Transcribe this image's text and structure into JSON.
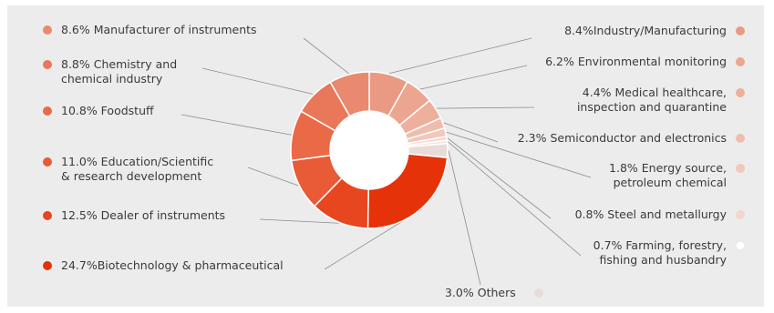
{
  "chart_data": {
    "type": "pie",
    "variant": "donut",
    "categories": [
      "Industry/Manufacturing",
      "Environmental monitoring",
      "Medical healthcare, inspection and quarantine",
      "Semiconductor and electronics",
      "Energy source, petroleum chemical",
      "Steel and metallurgy",
      "Farming, forestry, fishing and husbandry",
      "Others",
      "Biotechnology & pharmaceutical",
      "Dealer of instruments",
      "Education/Scientific & research development",
      "Foodstuff",
      "Chemistry and chemical industry",
      "Manufacturer of instruments"
    ],
    "values": [
      8.4,
      6.2,
      4.4,
      2.3,
      1.8,
      0.8,
      0.7,
      3.0,
      24.7,
      12.5,
      11.0,
      10.8,
      8.8,
      8.6
    ],
    "colors": [
      "#ea9a82",
      "#eca68f",
      "#eeb09d",
      "#efbdae",
      "#f1c8bb",
      "#f3d6cd",
      "#f6e3dd",
      "#e8dcda",
      "#e63209",
      "#e8461f",
      "#e95a36",
      "#ea6a48",
      "#e9775a",
      "#e9896f"
    ],
    "labels": [
      [
        "8.4%Industry/Manufacturing"
      ],
      [
        "6.2% Environmental monitoring"
      ],
      [
        "4.4% Medical healthcare,",
        "inspection and quarantine"
      ],
      [
        "2.3% Semiconductor and electronics"
      ],
      [
        "1.8% Energy source,",
        "petroleum chemical"
      ],
      [
        "0.8% Steel and metallurgy"
      ],
      [
        "0.7% Farming, forestry,",
        "fishing and husbandry"
      ],
      [
        "3.0% Others"
      ],
      [
        "24.7%Biotechnology & pharmaceutical"
      ],
      [
        "12.5% Dealer of instruments"
      ],
      [
        "11.0% Education/Scientific",
        "& research development"
      ],
      [
        "10.8% Foodstuff"
      ],
      [
        "8.8% Chemistry and",
        "chemical industry"
      ],
      [
        "8.6% Manufacturer of instruments"
      ]
    ],
    "title": "",
    "legend": "callouts around donut"
  }
}
